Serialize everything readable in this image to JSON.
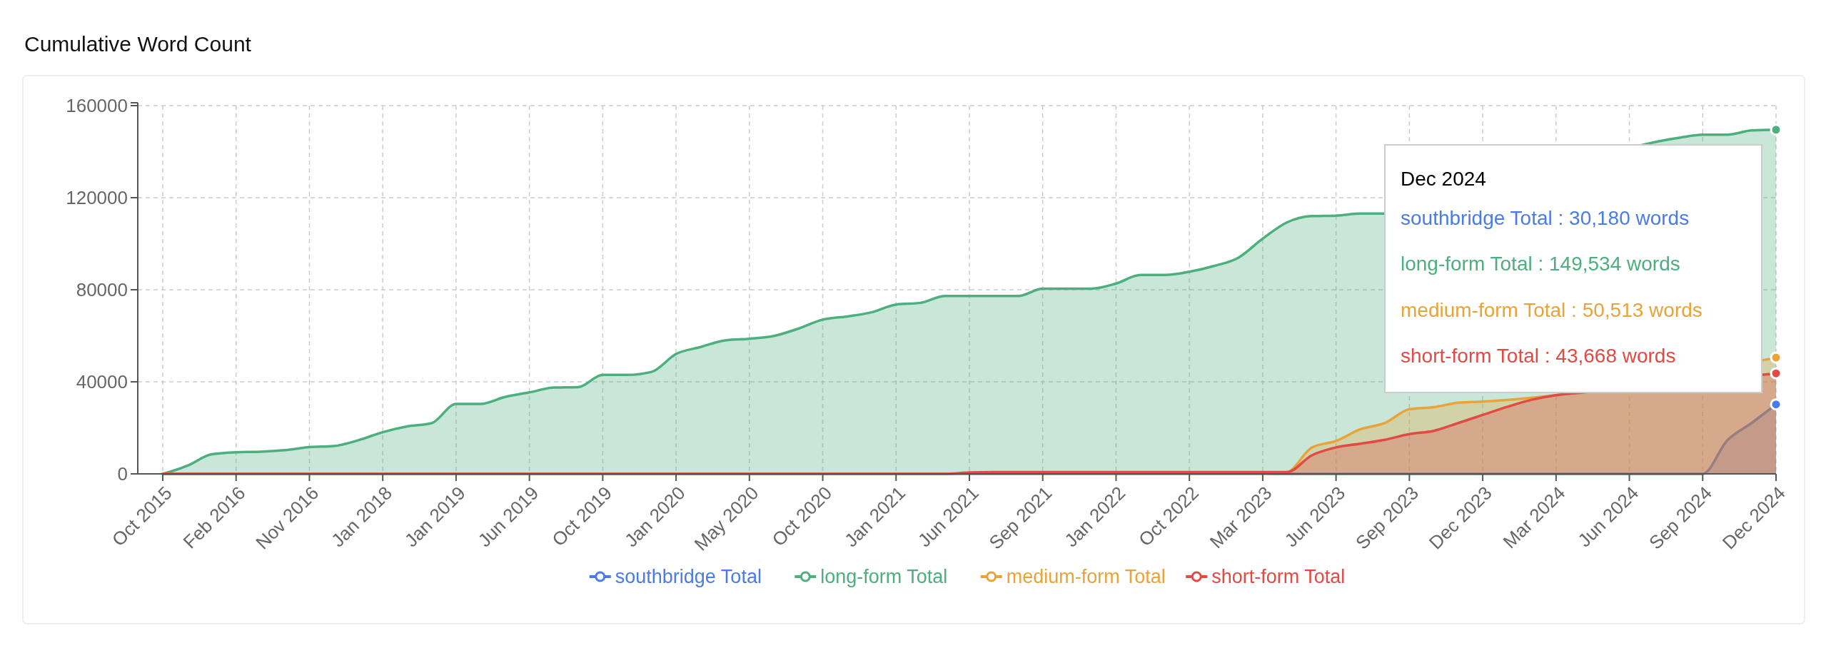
{
  "chart_data": {
    "type": "area",
    "title": "Cumulative Word Count",
    "categories": [
      "Oct 2015",
      null,
      null,
      "Feb 2016",
      null,
      null,
      "Nov 2016",
      null,
      null,
      "Jan 2018",
      null,
      null,
      "Jan 2019",
      null,
      null,
      "Jun 2019",
      null,
      null,
      "Oct 2019",
      null,
      null,
      "Jan 2020",
      null,
      null,
      "May 2020",
      null,
      null,
      "Oct 2020",
      null,
      null,
      "Jan 2021",
      null,
      null,
      "Jun 2021",
      null,
      null,
      "Sep 2021",
      null,
      null,
      "Jan 2022",
      null,
      null,
      "Oct 2022",
      null,
      null,
      "Mar 2023",
      null,
      null,
      "Jun 2023",
      null,
      null,
      "Sep 2023",
      null,
      null,
      "Dec 2023",
      null,
      null,
      "Mar 2024",
      null,
      null,
      "Jun 2024",
      null,
      null,
      "Sep 2024",
      null,
      null,
      "Dec 2024"
    ],
    "series": [
      {
        "name": "southbridge Total",
        "color": "#4a7be8",
        "values": [
          0,
          0,
          0,
          0,
          0,
          0,
          0,
          0,
          0,
          0,
          0,
          0,
          0,
          0,
          0,
          0,
          0,
          0,
          0,
          0,
          0,
          0,
          0,
          0,
          0,
          0,
          0,
          0,
          0,
          0,
          0,
          0,
          0,
          0,
          0,
          0,
          0,
          0,
          0,
          0,
          0,
          0,
          0,
          0,
          0,
          0,
          0,
          0,
          0,
          0,
          0,
          0,
          0,
          0,
          0,
          0,
          0,
          0,
          0,
          0,
          0,
          0,
          0,
          0,
          14500,
          22100,
          30180
        ]
      },
      {
        "name": "long-form Total",
        "color": "#4caf7d",
        "values": [
          0,
          3500,
          8500,
          9400,
          9600,
          10300,
          11600,
          12100,
          14600,
          18100,
          20600,
          22000,
          30400,
          30400,
          33400,
          35400,
          37500,
          37700,
          43000,
          43000,
          44300,
          52100,
          55100,
          58000,
          58700,
          59900,
          63100,
          67000,
          68400,
          70200,
          73600,
          74300,
          77300,
          77300,
          77300,
          77300,
          80500,
          80500,
          80500,
          82700,
          86400,
          86400,
          87800,
          90300,
          93900,
          102200,
          109300,
          112000,
          112200,
          113100,
          113100,
          null,
          null,
          null,
          null,
          null,
          null,
          null,
          null,
          null,
          null,
          null,
          146000,
          147400,
          147400,
          149200,
          149534
        ]
      },
      {
        "name": "medium-form Total",
        "color": "#e8a33a",
        "values": [
          0,
          0,
          0,
          0,
          0,
          0,
          0,
          0,
          0,
          0,
          0,
          0,
          0,
          0,
          0,
          0,
          0,
          0,
          0,
          0,
          0,
          0,
          0,
          0,
          0,
          0,
          0,
          0,
          0,
          0,
          0,
          0,
          0,
          0,
          0,
          0,
          0,
          0,
          0,
          0,
          0,
          0,
          0,
          0,
          0,
          0,
          800,
          11400,
          14300,
          19400,
          22100,
          28100,
          29000,
          30900,
          31400,
          null,
          null,
          null,
          null,
          null,
          null,
          null,
          null,
          null,
          null,
          null,
          50513
        ]
      },
      {
        "name": "short-form Total",
        "color": "#e04b44",
        "values": [
          0,
          0,
          0,
          0,
          0,
          0,
          0,
          0,
          0,
          0,
          0,
          0,
          0,
          0,
          0,
          0,
          0,
          0,
          0,
          0,
          0,
          0,
          0,
          0,
          0,
          0,
          0,
          0,
          0,
          0,
          0,
          0,
          0,
          600,
          800,
          800,
          800,
          800,
          800,
          800,
          800,
          800,
          800,
          800,
          800,
          800,
          800,
          8000,
          11500,
          13100,
          14800,
          17300,
          18700,
          22100,
          25600,
          29100,
          32200,
          34200,
          35300,
          null,
          null,
          null,
          null,
          null,
          null,
          null,
          43668
        ]
      }
    ],
    "ylim": [
      0,
      160000
    ],
    "yticks": [
      0,
      40000,
      80000,
      120000,
      160000
    ],
    "grid": true,
    "legend": "bottom",
    "marker": "none",
    "annotations": [
      "Dec 2024",
      "southbridge Total : 30,180 words",
      "long-form Total : 149,534 words",
      "medium-form Total : 50,513 words",
      "short-form Total : 43,668 words"
    ]
  }
}
